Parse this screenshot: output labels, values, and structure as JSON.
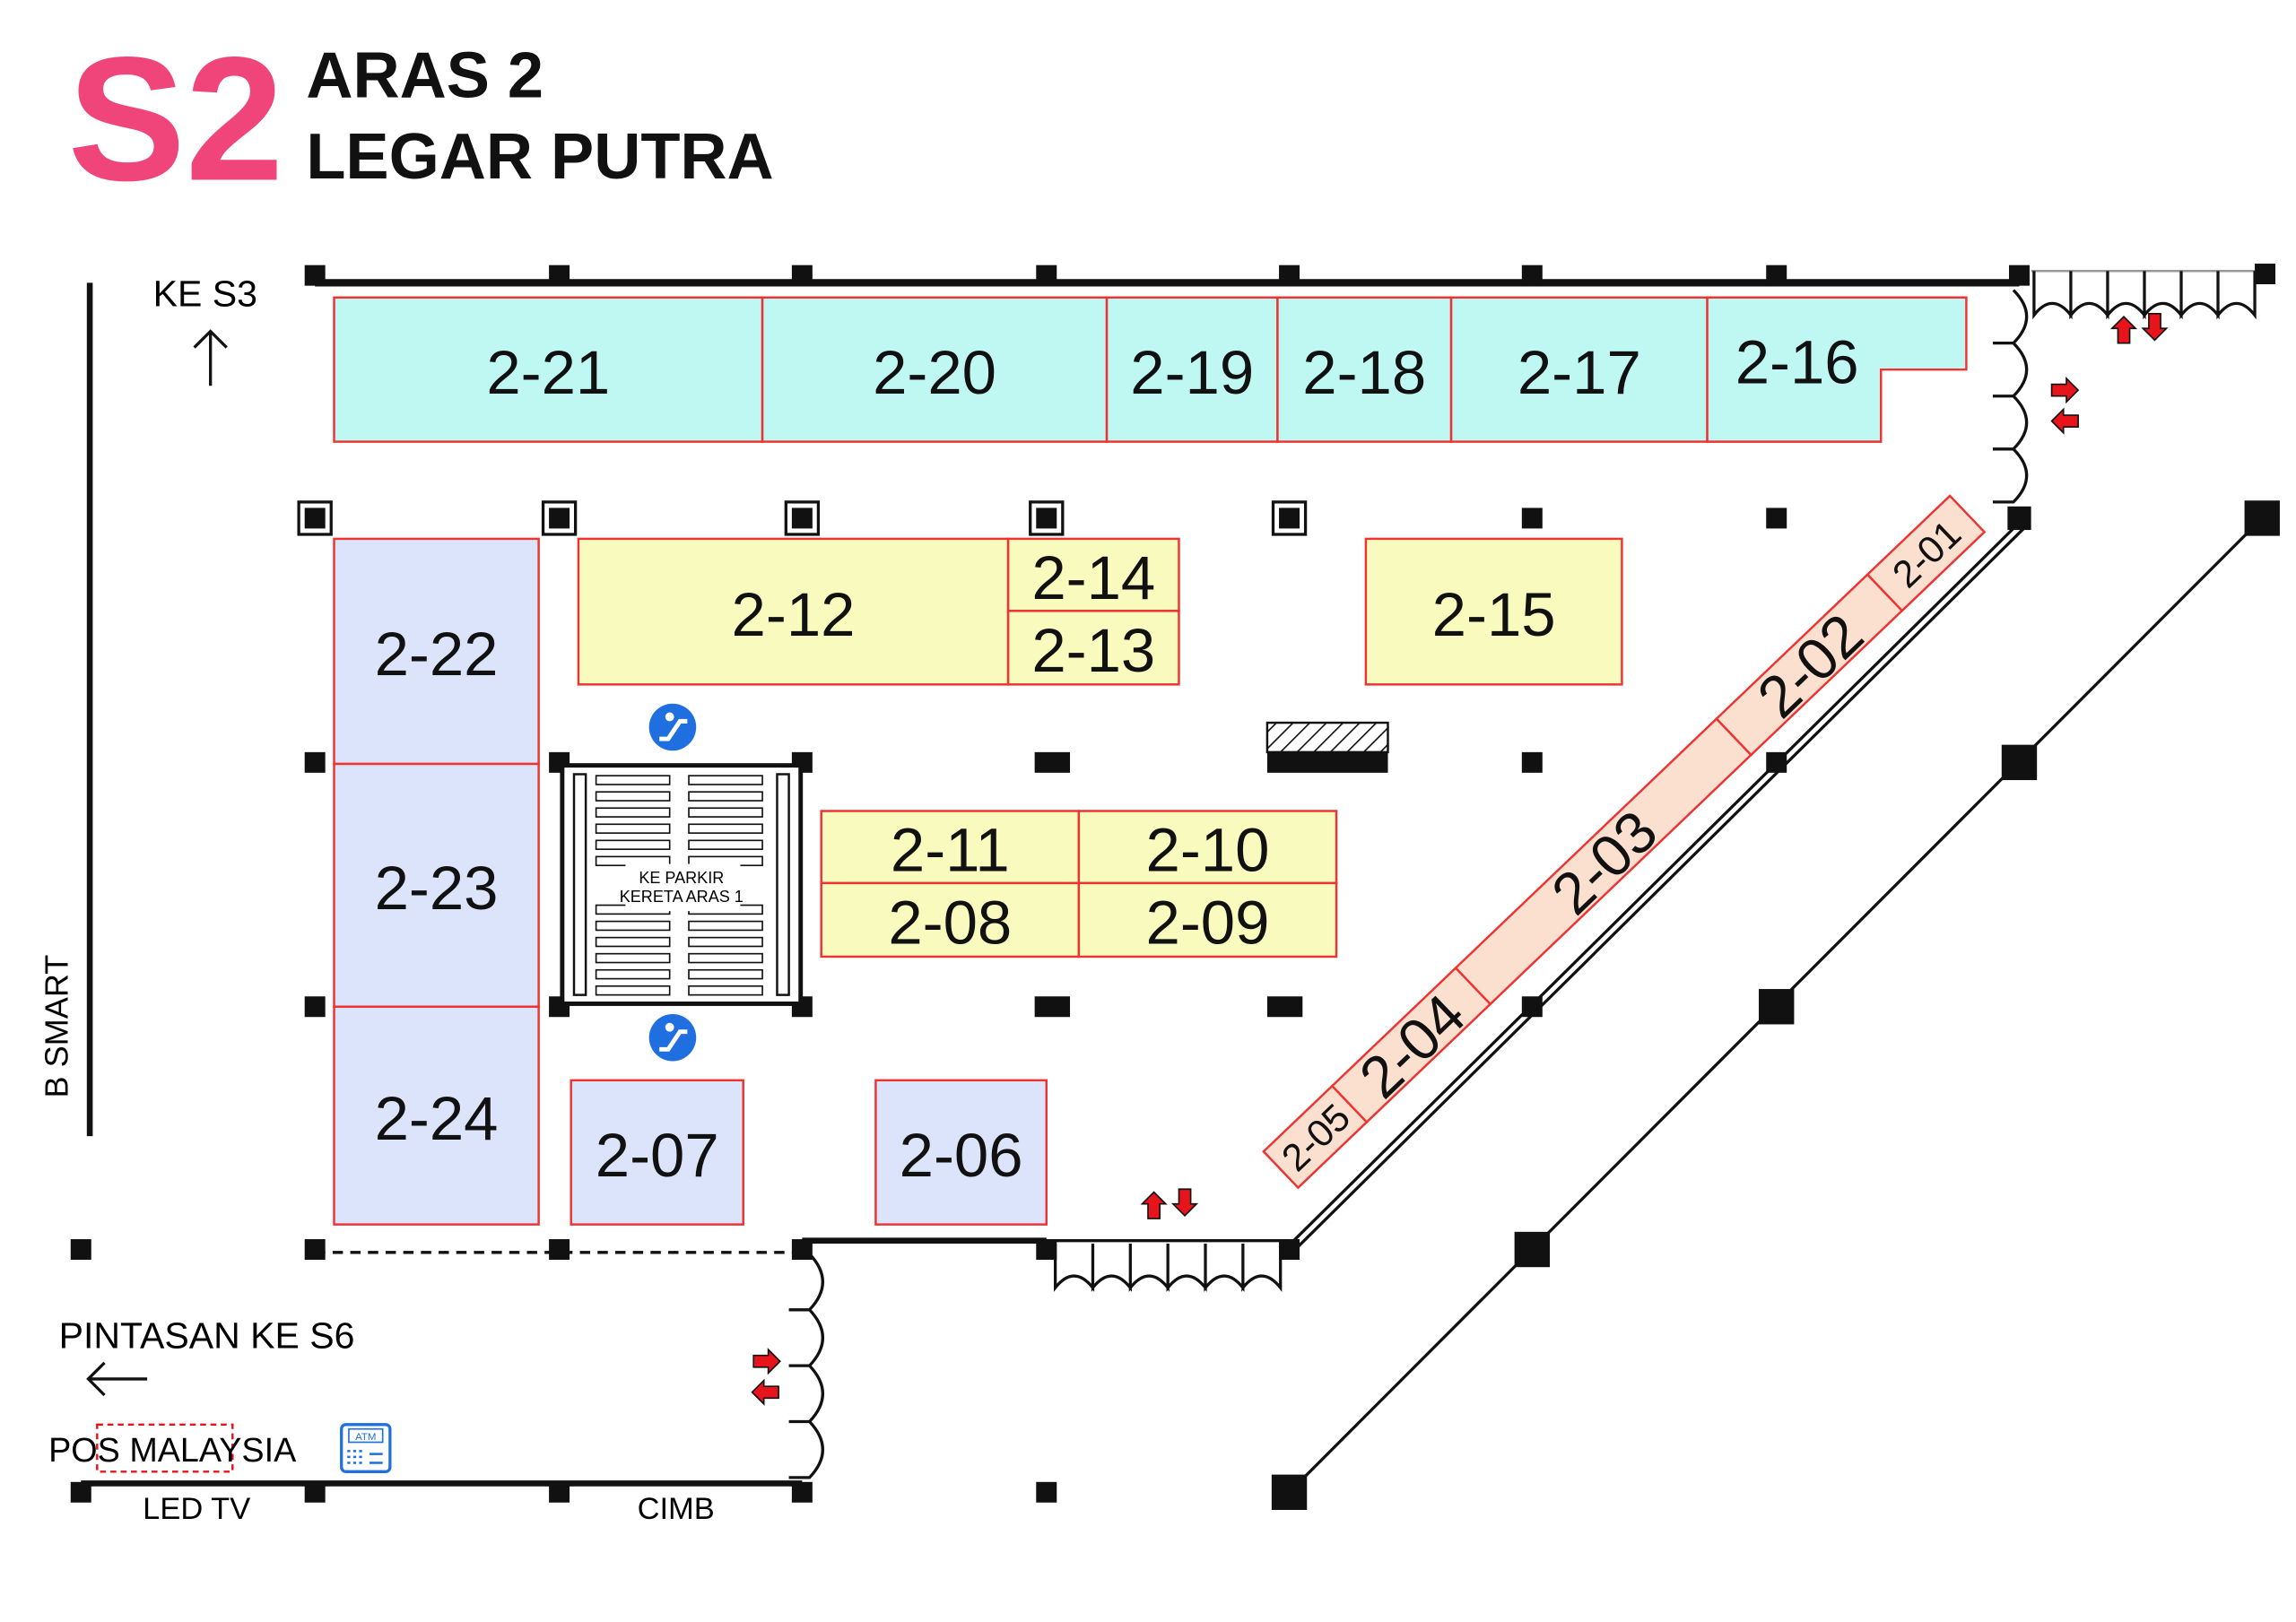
{
  "header": {
    "code": "S2",
    "level": "ARAS 2",
    "name": "LEGAR PUTRA"
  },
  "colors": {
    "code": "#f0457a",
    "booth_border": "#ee3333",
    "north_row": "#bff8f2",
    "west_block": "#dbe4fb",
    "center_block": "#f8fbbd",
    "diagonal_strip": "#fbdfcf",
    "arrow": "#e8141b",
    "info_icon": "#1f6fe0"
  },
  "booths": [
    {
      "id": "2-21",
      "zone": "north_row"
    },
    {
      "id": "2-20",
      "zone": "north_row"
    },
    {
      "id": "2-19",
      "zone": "north_row"
    },
    {
      "id": "2-18",
      "zone": "north_row"
    },
    {
      "id": "2-17",
      "zone": "north_row"
    },
    {
      "id": "2-16",
      "zone": "north_row"
    },
    {
      "id": "2-22",
      "zone": "west_block"
    },
    {
      "id": "2-23",
      "zone": "west_block"
    },
    {
      "id": "2-24",
      "zone": "west_block"
    },
    {
      "id": "2-07",
      "zone": "west_block"
    },
    {
      "id": "2-06",
      "zone": "west_block"
    },
    {
      "id": "2-12",
      "zone": "center_block"
    },
    {
      "id": "2-14",
      "zone": "center_block"
    },
    {
      "id": "2-13",
      "zone": "center_block"
    },
    {
      "id": "2-15",
      "zone": "center_block"
    },
    {
      "id": "2-11",
      "zone": "center_block"
    },
    {
      "id": "2-10",
      "zone": "center_block"
    },
    {
      "id": "2-08",
      "zone": "center_block"
    },
    {
      "id": "2-09",
      "zone": "center_block"
    },
    {
      "id": "2-05",
      "zone": "diagonal_strip"
    },
    {
      "id": "2-04",
      "zone": "diagonal_strip"
    },
    {
      "id": "2-03",
      "zone": "diagonal_strip"
    },
    {
      "id": "2-02",
      "zone": "diagonal_strip"
    },
    {
      "id": "2-01",
      "zone": "diagonal_strip"
    }
  ],
  "labels": {
    "to_s3": "KE S3",
    "b_smart": "B SMART",
    "shortcut": "PINTASAN KE S6",
    "pos": "POS MALAYSIA",
    "atm": "ATM",
    "led_tv": "LED TV",
    "cimb": "CIMB",
    "parking_line1": "KE PARKIR",
    "parking_line2": "KERETA ARAS 1"
  },
  "icons": [
    "arrow-up-icon",
    "arrow-left-icon",
    "escalator-icon",
    "atm-icon",
    "entry-exit-arrows-icon",
    "door-icon",
    "column-icon"
  ]
}
